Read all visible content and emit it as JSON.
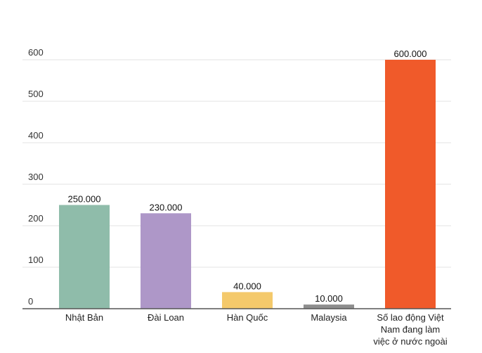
{
  "chart_data": {
    "type": "bar",
    "categories": [
      [
        "Nhật Bản"
      ],
      [
        "Đài Loan"
      ],
      [
        "Hàn Quốc"
      ],
      [
        "Malaysia"
      ],
      [
        "Số lao động Việt",
        "Nam đang làm",
        "việc ở nước ngoài"
      ]
    ],
    "values": [
      250,
      230,
      40,
      10,
      600
    ],
    "data_labels": [
      "250.000",
      "230.000",
      "40.000",
      "10.000",
      "600.000"
    ],
    "colors": [
      "#8fbcaa",
      "#ae97c8",
      "#f4c96b",
      "#8e8e8e",
      "#f05a2a"
    ],
    "y_ticks": [
      0,
      100,
      200,
      300,
      400,
      500,
      600
    ],
    "ylim": [
      0,
      600
    ],
    "grid": true,
    "legend": "none",
    "title": "",
    "xlabel": "",
    "ylabel": ""
  }
}
